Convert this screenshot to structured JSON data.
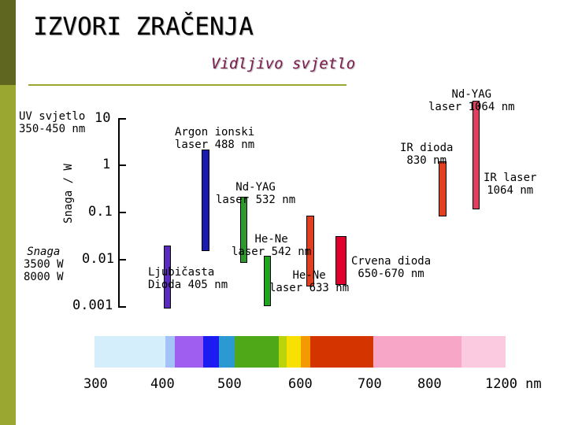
{
  "slide": {
    "title": "IZVORI ZRAČENJA",
    "subtitle": "Vidljivo svjetlo",
    "theme": {
      "sidebar_color": "#9aa832",
      "sidebar_dark": "#5f661f",
      "subtitle_color": "#7d1b4d"
    }
  },
  "axis": {
    "ylabel": "Snaga / W",
    "yticks": [
      "10",
      "1",
      "0.1",
      "0.01",
      "0.001"
    ],
    "xticks": [
      "300",
      "400",
      "500",
      "600",
      "700",
      "800",
      "1200 nm"
    ]
  },
  "annotations": {
    "uv_line1": "UV svjetlo",
    "uv_line2": "350-450 nm",
    "snaga_line1": "Snaga",
    "snaga_line2": "3500 W",
    "snaga_line3": "8000 W",
    "argon_line1": "Argon ionski",
    "argon_line2": "laser 488 nm",
    "ndyag1064_line1": "Nd-YAG",
    "ndyag1064_line2": "laser 1064 nm",
    "ir_dioda_line1": "IR dioda",
    "ir_dioda_line2": "830 nm",
    "ir_laser_line1": "IR laser",
    "ir_laser_line2": "1064 nm",
    "ndyag532_line1": "Nd-YAG",
    "ndyag532_line2": "laser 532 nm",
    "hene542_line1": "He-Ne",
    "hene542_line2": "laser 542 nm",
    "ljubicasta_line1": "Ljubičasta",
    "ljubicasta_line2": "Dioda 405 nm",
    "hene633_line1": "He-Ne",
    "hene633_line2": "laser 633 nm",
    "crvena_line1": "Crvena dioda",
    "crvena_line2": "650-670 nm"
  },
  "bars": [
    {
      "name": "argon-488",
      "color": "#1a1ab0",
      "stroke": "#000000"
    },
    {
      "name": "ljubicasta-405",
      "color": "#5b2bbf",
      "stroke": "#000000"
    },
    {
      "name": "ndyag-532",
      "color": "#2e9a2e",
      "stroke": "#000000"
    },
    {
      "name": "hene-542",
      "color": "#1fa61f",
      "stroke": "#000000"
    },
    {
      "name": "hene-633",
      "color": "#e04020",
      "stroke": "#000000"
    },
    {
      "name": "crvena-dioda",
      "color": "#e0002a",
      "stroke": "#000000"
    },
    {
      "name": "ir-dioda-830",
      "color": "#e04020",
      "stroke": "#000000"
    },
    {
      "name": "ndyag-1064",
      "color": "#e04060",
      "stroke": "#000000"
    }
  ],
  "spectrum": [
    {
      "name": "uv-band",
      "color": "#d4eefc"
    },
    {
      "name": "violet-light-band",
      "color": "#a4c4f8"
    },
    {
      "name": "violet-band",
      "color": "#a05ef0"
    },
    {
      "name": "blue-band",
      "color": "#1c1cf2"
    },
    {
      "name": "cyan-band",
      "color": "#2c9ad2"
    },
    {
      "name": "green-band",
      "color": "#4ea818"
    },
    {
      "name": "lime-band",
      "color": "#bad40c"
    },
    {
      "name": "yellow-band",
      "color": "#f8e000"
    },
    {
      "name": "orange-band",
      "color": "#f49a00"
    },
    {
      "name": "red-band",
      "color": "#d43400"
    },
    {
      "name": "pink-band",
      "color": "#f8a6c8"
    },
    {
      "name": "lightpink-band",
      "color": "#fccae0"
    }
  ]
}
